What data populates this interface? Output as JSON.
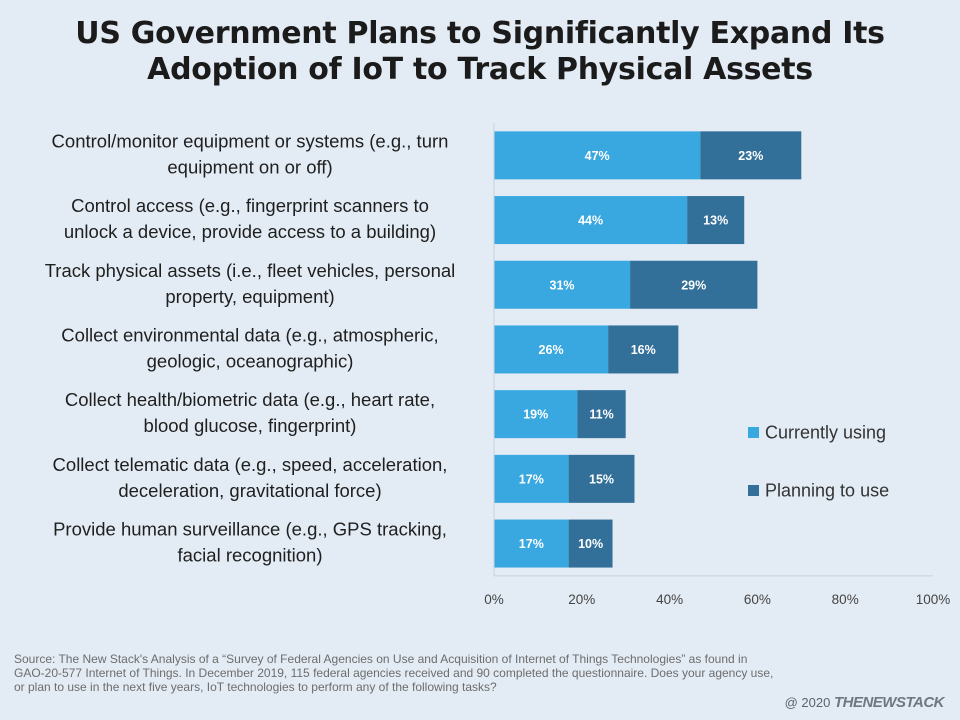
{
  "title": "US Government Plans to Significantly Expand Its Adoption of IoT to Track Physical Assets",
  "colors": {
    "current": "#39A8E0",
    "planning": "#326F99",
    "axis": "#C9D2DC",
    "text": "#1f1f1f",
    "bar_label": "#ffffff"
  },
  "chart_data": {
    "type": "bar",
    "orientation": "horizontal",
    "stacked": true,
    "categories": [
      [
        "Control/monitor equipment or systems (e.g., turn",
        "equipment on or off)"
      ],
      [
        "Control access (e.g., fingerprint scanners to",
        "unlock a device, provide access to a building)"
      ],
      [
        "Track physical assets (i.e., fleet vehicles, personal",
        "property, equipment)"
      ],
      [
        "Collect environmental data (e.g., atmospheric,",
        "geologic, oceanographic)"
      ],
      [
        "Collect health/biometric data (e.g., heart rate,",
        "blood glucose, fingerprint)"
      ],
      [
        "Collect telematic data (e.g., speed, acceleration,",
        "deceleration, gravitational force)"
      ],
      [
        "Provide human surveillance (e.g., GPS tracking,",
        "facial recognition)"
      ]
    ],
    "series": [
      {
        "name": "Currently using",
        "color": "#39A8E0",
        "values": [
          47,
          44,
          31,
          26,
          19,
          17,
          17
        ],
        "labels": [
          "47%",
          "44%",
          "31%",
          "26%",
          "19%",
          "17%",
          "17%"
        ]
      },
      {
        "name": "Planning to use",
        "color": "#326F99",
        "values": [
          23,
          13,
          29,
          16,
          11,
          15,
          10
        ],
        "labels": [
          "23%",
          "13%",
          "29%",
          "16%",
          "11%",
          "15%",
          "10%"
        ]
      }
    ],
    "xlim": [
      0,
      100
    ],
    "xticks": [
      0,
      20,
      40,
      60,
      80,
      100
    ],
    "xtick_labels": [
      "0%",
      "20%",
      "40%",
      "60%",
      "80%",
      "100%"
    ],
    "grid": false,
    "legend_position": "right"
  },
  "source": "Source:  The New Stack's Analysis of a “Survey of Federal Agencies on Use and Acquisition of Internet of Things Technologies”  as found in GAO-20-577 Internet of Things. In December 2019, 115 federal agencies  received  and 90 completed the questionnaire. Does your agency use, or plan to use in the next five years, IoT technologies to perform any of the following tasks?",
  "footer": {
    "copyright": "@ 2020",
    "brand": "THENEWSTACK"
  }
}
